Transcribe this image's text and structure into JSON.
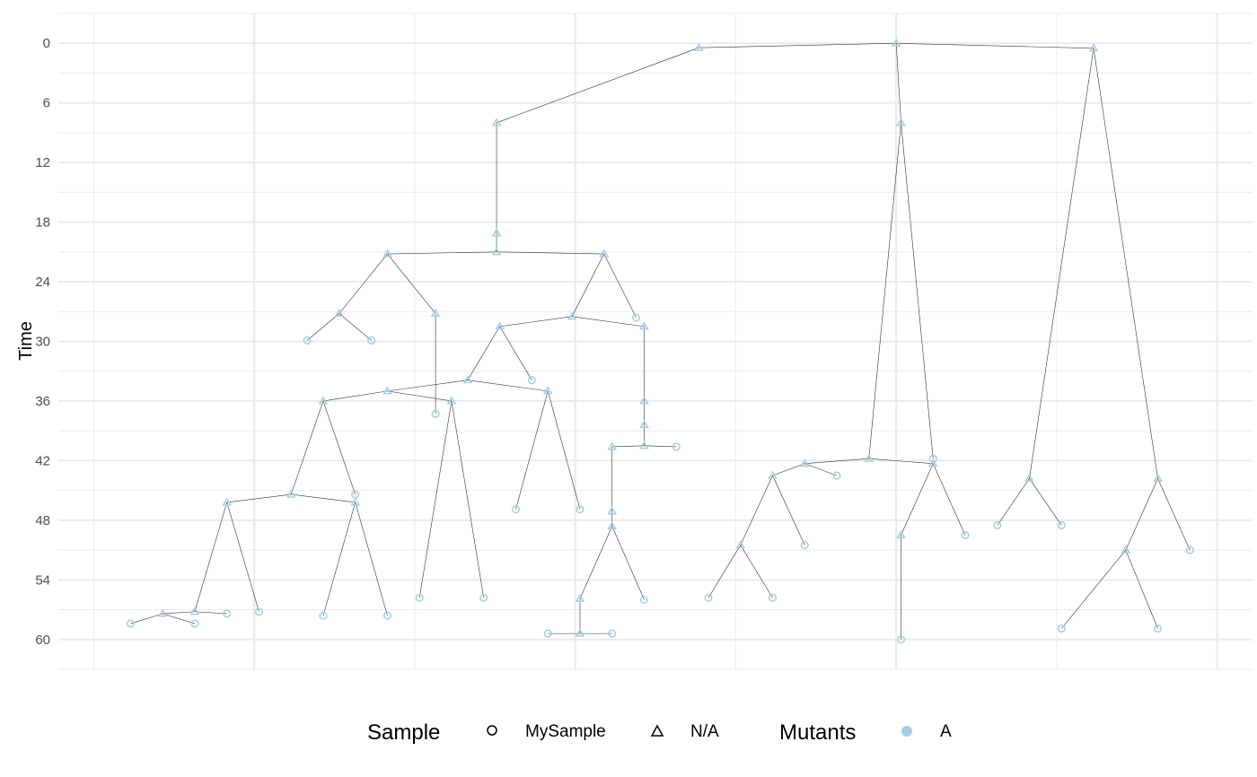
{
  "chart_data": {
    "type": "tree",
    "title": "",
    "xlabel": "",
    "ylabel": "Time",
    "ylim": [
      -3,
      63
    ],
    "y_reversed": true,
    "yticks": [
      0,
      6,
      12,
      18,
      24,
      30,
      36,
      42,
      48,
      54,
      60
    ],
    "xlim": [
      -0.22,
      7.22
    ],
    "x_tick_labels_shown": false,
    "grid": true,
    "legend_position": "bottom",
    "colors": {
      "mutant_A": "#a6cee3",
      "edge": "#333333",
      "grid": "#ebebeb"
    },
    "legend": {
      "sample_title": "Sample",
      "sample_entries": [
        {
          "label": "MySample",
          "shape": "circle"
        },
        {
          "label": "N/A",
          "shape": "triangle"
        }
      ],
      "mutants_title": "Mutants",
      "mutants_entries": [
        {
          "label": "A",
          "color": "#a6cee3"
        }
      ]
    },
    "nodes": [
      {
        "id": 0,
        "x": 5.0,
        "time": 0,
        "sample": "N/A",
        "parent": null
      },
      {
        "id": 1,
        "x": 3.77,
        "time": 0.45,
        "sample": "N/A",
        "parent": 0
      },
      {
        "id": 2,
        "x": 6.23,
        "time": 0.5,
        "sample": "N/A",
        "parent": 0
      },
      {
        "id": 3,
        "x": 5.03,
        "time": 8.0,
        "sample": "N/A",
        "parent": 0
      },
      {
        "id": 4,
        "x": 2.51,
        "time": 8.0,
        "sample": "N/A",
        "parent": 1
      },
      {
        "id": 5,
        "x": 2.51,
        "time": 19.1,
        "sample": "N/A",
        "parent": 4
      },
      {
        "id": 6,
        "x": 2.51,
        "time": 21.0,
        "sample": "N/A",
        "parent": 5
      },
      {
        "id": 7,
        "x": 1.83,
        "time": 21.2,
        "sample": "N/A",
        "parent": 6
      },
      {
        "id": 8,
        "x": 3.18,
        "time": 21.2,
        "sample": "N/A",
        "parent": 6
      },
      {
        "id": 9,
        "x": 1.53,
        "time": 27.2,
        "sample": "N/A",
        "parent": 7
      },
      {
        "id": 10,
        "x": 2.13,
        "time": 27.2,
        "sample": "N/A",
        "parent": 7
      },
      {
        "id": 11,
        "x": 1.33,
        "time": 29.9,
        "sample": "MySample",
        "parent": 9
      },
      {
        "id": 12,
        "x": 1.73,
        "time": 29.9,
        "sample": "MySample",
        "parent": 9
      },
      {
        "id": 13,
        "x": 2.13,
        "time": 37.3,
        "sample": "MySample",
        "parent": 10
      },
      {
        "id": 14,
        "x": 2.98,
        "time": 27.5,
        "sample": "N/A",
        "parent": 8
      },
      {
        "id": 15,
        "x": 3.38,
        "time": 27.6,
        "sample": "MySample",
        "parent": 8
      },
      {
        "id": 16,
        "x": 2.53,
        "time": 28.5,
        "sample": "N/A",
        "parent": 14
      },
      {
        "id": 17,
        "x": 3.43,
        "time": 28.5,
        "sample": "N/A",
        "parent": 14
      },
      {
        "id": 18,
        "x": 2.33,
        "time": 33.9,
        "sample": "N/A",
        "parent": 16
      },
      {
        "id": 19,
        "x": 2.73,
        "time": 33.9,
        "sample": "MySample",
        "parent": 16
      },
      {
        "id": 20,
        "x": 1.83,
        "time": 35.0,
        "sample": "N/A",
        "parent": 18
      },
      {
        "id": 21,
        "x": 2.83,
        "time": 35.0,
        "sample": "N/A",
        "parent": 18
      },
      {
        "id": 22,
        "x": 1.43,
        "time": 36.0,
        "sample": "N/A",
        "parent": 20
      },
      {
        "id": 23,
        "x": 2.23,
        "time": 36.0,
        "sample": "N/A",
        "parent": 20
      },
      {
        "id": 24,
        "x": 1.23,
        "time": 45.4,
        "sample": "N/A",
        "parent": 22
      },
      {
        "id": 25,
        "x": 1.63,
        "time": 45.4,
        "sample": "MySample",
        "parent": 22
      },
      {
        "id": 26,
        "x": 0.83,
        "time": 46.2,
        "sample": "N/A",
        "parent": 24
      },
      {
        "id": 27,
        "x": 1.63,
        "time": 46.2,
        "sample": "N/A",
        "parent": 24
      },
      {
        "id": 28,
        "x": 0.63,
        "time": 57.2,
        "sample": "N/A",
        "parent": 26
      },
      {
        "id": 29,
        "x": 1.03,
        "time": 57.2,
        "sample": "MySample",
        "parent": 26
      },
      {
        "id": 30,
        "x": 0.43,
        "time": 57.4,
        "sample": "N/A",
        "parent": 28
      },
      {
        "id": 31,
        "x": 0.83,
        "time": 57.4,
        "sample": "MySample",
        "parent": 28
      },
      {
        "id": 32,
        "x": 0.23,
        "time": 58.4,
        "sample": "MySample",
        "parent": 30
      },
      {
        "id": 33,
        "x": 0.63,
        "time": 58.4,
        "sample": "MySample",
        "parent": 30
      },
      {
        "id": 34,
        "x": 1.43,
        "time": 57.6,
        "sample": "MySample",
        "parent": 27
      },
      {
        "id": 35,
        "x": 1.83,
        "time": 57.6,
        "sample": "MySample",
        "parent": 27
      },
      {
        "id": 36,
        "x": 2.03,
        "time": 55.8,
        "sample": "MySample",
        "parent": 23
      },
      {
        "id": 37,
        "x": 2.43,
        "time": 55.8,
        "sample": "MySample",
        "parent": 23
      },
      {
        "id": 38,
        "x": 2.63,
        "time": 46.9,
        "sample": "MySample",
        "parent": 21
      },
      {
        "id": 39,
        "x": 3.03,
        "time": 46.9,
        "sample": "MySample",
        "parent": 21
      },
      {
        "id": 40,
        "x": 3.43,
        "time": 36.0,
        "sample": "N/A",
        "parent": 17
      },
      {
        "id": 41,
        "x": 3.43,
        "time": 38.4,
        "sample": "N/A",
        "parent": 40
      },
      {
        "id": 42,
        "x": 3.43,
        "time": 40.5,
        "sample": "N/A",
        "parent": 41
      },
      {
        "id": 43,
        "x": 3.23,
        "time": 40.6,
        "sample": "N/A",
        "parent": 42
      },
      {
        "id": 44,
        "x": 3.63,
        "time": 40.6,
        "sample": "MySample",
        "parent": 42
      },
      {
        "id": 45,
        "x": 3.23,
        "time": 47.1,
        "sample": "N/A",
        "parent": 43
      },
      {
        "id": 46,
        "x": 3.23,
        "time": 48.6,
        "sample": "N/A",
        "parent": 45
      },
      {
        "id": 47,
        "x": 3.03,
        "time": 55.9,
        "sample": "N/A",
        "parent": 46
      },
      {
        "id": 48,
        "x": 3.43,
        "time": 56.0,
        "sample": "MySample",
        "parent": 46
      },
      {
        "id": 49,
        "x": 3.03,
        "time": 59.4,
        "sample": "N/A",
        "parent": 47
      },
      {
        "id": 50,
        "x": 2.83,
        "time": 59.4,
        "sample": "MySample",
        "parent": 49
      },
      {
        "id": 51,
        "x": 3.23,
        "time": 59.4,
        "sample": "MySample",
        "parent": 49
      },
      {
        "id": 52,
        "x": 4.83,
        "time": 41.8,
        "sample": "N/A",
        "parent": 3
      },
      {
        "id": 53,
        "x": 5.23,
        "time": 41.8,
        "sample": "MySample",
        "parent": 3
      },
      {
        "id": 54,
        "x": 4.43,
        "time": 42.3,
        "sample": "N/A",
        "parent": 52
      },
      {
        "id": 55,
        "x": 5.23,
        "time": 42.3,
        "sample": "N/A",
        "parent": 52
      },
      {
        "id": 56,
        "x": 4.23,
        "time": 43.5,
        "sample": "N/A",
        "parent": 54
      },
      {
        "id": 57,
        "x": 4.63,
        "time": 43.5,
        "sample": "MySample",
        "parent": 54
      },
      {
        "id": 58,
        "x": 4.03,
        "time": 50.5,
        "sample": "N/A",
        "parent": 56
      },
      {
        "id": 59,
        "x": 4.43,
        "time": 50.5,
        "sample": "MySample",
        "parent": 56
      },
      {
        "id": 60,
        "x": 3.83,
        "time": 55.8,
        "sample": "MySample",
        "parent": 58
      },
      {
        "id": 61,
        "x": 4.23,
        "time": 55.8,
        "sample": "MySample",
        "parent": 58
      },
      {
        "id": 62,
        "x": 5.03,
        "time": 49.5,
        "sample": "N/A",
        "parent": 55
      },
      {
        "id": 63,
        "x": 5.43,
        "time": 49.5,
        "sample": "MySample",
        "parent": 55
      },
      {
        "id": 64,
        "x": 5.03,
        "time": 60.0,
        "sample": "MySample",
        "parent": 62
      },
      {
        "id": 65,
        "x": 5.83,
        "time": 43.8,
        "sample": "N/A",
        "parent": 2
      },
      {
        "id": 66,
        "x": 6.63,
        "time": 43.8,
        "sample": "N/A",
        "parent": 2
      },
      {
        "id": 67,
        "x": 5.63,
        "time": 48.5,
        "sample": "MySample",
        "parent": 65
      },
      {
        "id": 68,
        "x": 6.03,
        "time": 48.5,
        "sample": "MySample",
        "parent": 65
      },
      {
        "id": 69,
        "x": 6.43,
        "time": 51.0,
        "sample": "N/A",
        "parent": 66
      },
      {
        "id": 70,
        "x": 6.83,
        "time": 51.0,
        "sample": "MySample",
        "parent": 66
      },
      {
        "id": 71,
        "x": 6.03,
        "time": 58.9,
        "sample": "MySample",
        "parent": 69
      },
      {
        "id": 72,
        "x": 6.63,
        "time": 58.9,
        "sample": "MySample",
        "parent": 69
      }
    ]
  }
}
